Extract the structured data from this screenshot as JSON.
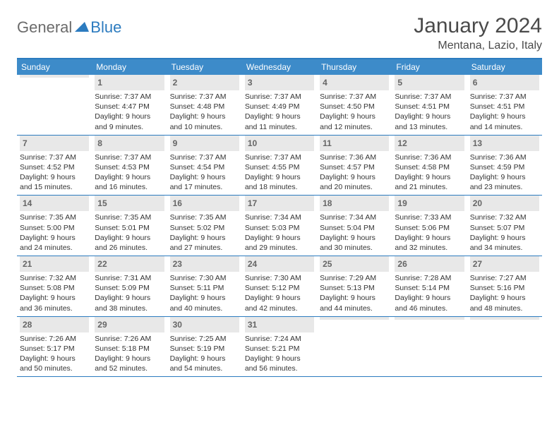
{
  "logo": {
    "text1": "General",
    "text2": "Blue"
  },
  "title": "January 2024",
  "location": "Mentana, Lazio, Italy",
  "dow": [
    "Sunday",
    "Monday",
    "Tuesday",
    "Wednesday",
    "Thursday",
    "Friday",
    "Saturday"
  ],
  "colors": {
    "header_bg": "#3d8bc9",
    "border": "#2c7bbf",
    "daynum_bg": "#e8e8e8",
    "text": "#333333",
    "title": "#4a4a4a"
  },
  "weeks": [
    [
      {
        "n": "",
        "sr": "",
        "ss": "",
        "dl": ""
      },
      {
        "n": "1",
        "sr": "Sunrise: 7:37 AM",
        "ss": "Sunset: 4:47 PM",
        "dl": "Daylight: 9 hours and 9 minutes."
      },
      {
        "n": "2",
        "sr": "Sunrise: 7:37 AM",
        "ss": "Sunset: 4:48 PM",
        "dl": "Daylight: 9 hours and 10 minutes."
      },
      {
        "n": "3",
        "sr": "Sunrise: 7:37 AM",
        "ss": "Sunset: 4:49 PM",
        "dl": "Daylight: 9 hours and 11 minutes."
      },
      {
        "n": "4",
        "sr": "Sunrise: 7:37 AM",
        "ss": "Sunset: 4:50 PM",
        "dl": "Daylight: 9 hours and 12 minutes."
      },
      {
        "n": "5",
        "sr": "Sunrise: 7:37 AM",
        "ss": "Sunset: 4:51 PM",
        "dl": "Daylight: 9 hours and 13 minutes."
      },
      {
        "n": "6",
        "sr": "Sunrise: 7:37 AM",
        "ss": "Sunset: 4:51 PM",
        "dl": "Daylight: 9 hours and 14 minutes."
      }
    ],
    [
      {
        "n": "7",
        "sr": "Sunrise: 7:37 AM",
        "ss": "Sunset: 4:52 PM",
        "dl": "Daylight: 9 hours and 15 minutes."
      },
      {
        "n": "8",
        "sr": "Sunrise: 7:37 AM",
        "ss": "Sunset: 4:53 PM",
        "dl": "Daylight: 9 hours and 16 minutes."
      },
      {
        "n": "9",
        "sr": "Sunrise: 7:37 AM",
        "ss": "Sunset: 4:54 PM",
        "dl": "Daylight: 9 hours and 17 minutes."
      },
      {
        "n": "10",
        "sr": "Sunrise: 7:37 AM",
        "ss": "Sunset: 4:55 PM",
        "dl": "Daylight: 9 hours and 18 minutes."
      },
      {
        "n": "11",
        "sr": "Sunrise: 7:36 AM",
        "ss": "Sunset: 4:57 PM",
        "dl": "Daylight: 9 hours and 20 minutes."
      },
      {
        "n": "12",
        "sr": "Sunrise: 7:36 AM",
        "ss": "Sunset: 4:58 PM",
        "dl": "Daylight: 9 hours and 21 minutes."
      },
      {
        "n": "13",
        "sr": "Sunrise: 7:36 AM",
        "ss": "Sunset: 4:59 PM",
        "dl": "Daylight: 9 hours and 23 minutes."
      }
    ],
    [
      {
        "n": "14",
        "sr": "Sunrise: 7:35 AM",
        "ss": "Sunset: 5:00 PM",
        "dl": "Daylight: 9 hours and 24 minutes."
      },
      {
        "n": "15",
        "sr": "Sunrise: 7:35 AM",
        "ss": "Sunset: 5:01 PM",
        "dl": "Daylight: 9 hours and 26 minutes."
      },
      {
        "n": "16",
        "sr": "Sunrise: 7:35 AM",
        "ss": "Sunset: 5:02 PM",
        "dl": "Daylight: 9 hours and 27 minutes."
      },
      {
        "n": "17",
        "sr": "Sunrise: 7:34 AM",
        "ss": "Sunset: 5:03 PM",
        "dl": "Daylight: 9 hours and 29 minutes."
      },
      {
        "n": "18",
        "sr": "Sunrise: 7:34 AM",
        "ss": "Sunset: 5:04 PM",
        "dl": "Daylight: 9 hours and 30 minutes."
      },
      {
        "n": "19",
        "sr": "Sunrise: 7:33 AM",
        "ss": "Sunset: 5:06 PM",
        "dl": "Daylight: 9 hours and 32 minutes."
      },
      {
        "n": "20",
        "sr": "Sunrise: 7:32 AM",
        "ss": "Sunset: 5:07 PM",
        "dl": "Daylight: 9 hours and 34 minutes."
      }
    ],
    [
      {
        "n": "21",
        "sr": "Sunrise: 7:32 AM",
        "ss": "Sunset: 5:08 PM",
        "dl": "Daylight: 9 hours and 36 minutes."
      },
      {
        "n": "22",
        "sr": "Sunrise: 7:31 AM",
        "ss": "Sunset: 5:09 PM",
        "dl": "Daylight: 9 hours and 38 minutes."
      },
      {
        "n": "23",
        "sr": "Sunrise: 7:30 AM",
        "ss": "Sunset: 5:11 PM",
        "dl": "Daylight: 9 hours and 40 minutes."
      },
      {
        "n": "24",
        "sr": "Sunrise: 7:30 AM",
        "ss": "Sunset: 5:12 PM",
        "dl": "Daylight: 9 hours and 42 minutes."
      },
      {
        "n": "25",
        "sr": "Sunrise: 7:29 AM",
        "ss": "Sunset: 5:13 PM",
        "dl": "Daylight: 9 hours and 44 minutes."
      },
      {
        "n": "26",
        "sr": "Sunrise: 7:28 AM",
        "ss": "Sunset: 5:14 PM",
        "dl": "Daylight: 9 hours and 46 minutes."
      },
      {
        "n": "27",
        "sr": "Sunrise: 7:27 AM",
        "ss": "Sunset: 5:16 PM",
        "dl": "Daylight: 9 hours and 48 minutes."
      }
    ],
    [
      {
        "n": "28",
        "sr": "Sunrise: 7:26 AM",
        "ss": "Sunset: 5:17 PM",
        "dl": "Daylight: 9 hours and 50 minutes."
      },
      {
        "n": "29",
        "sr": "Sunrise: 7:26 AM",
        "ss": "Sunset: 5:18 PM",
        "dl": "Daylight: 9 hours and 52 minutes."
      },
      {
        "n": "30",
        "sr": "Sunrise: 7:25 AM",
        "ss": "Sunset: 5:19 PM",
        "dl": "Daylight: 9 hours and 54 minutes."
      },
      {
        "n": "31",
        "sr": "Sunrise: 7:24 AM",
        "ss": "Sunset: 5:21 PM",
        "dl": "Daylight: 9 hours and 56 minutes."
      },
      {
        "n": "",
        "sr": "",
        "ss": "",
        "dl": ""
      },
      {
        "n": "",
        "sr": "",
        "ss": "",
        "dl": ""
      },
      {
        "n": "",
        "sr": "",
        "ss": "",
        "dl": ""
      }
    ]
  ]
}
